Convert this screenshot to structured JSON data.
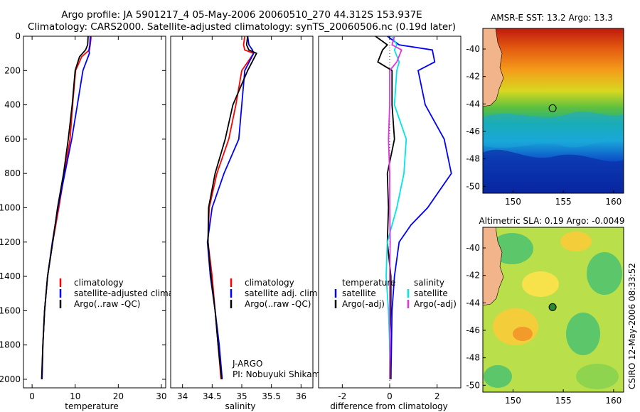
{
  "title_line1": "Argo profile: JA 5901217_4 05-May-2006 20060510_270 44.312S 153.937E",
  "title_line2": "Climatology: CARS2000. Satellite-adjusted climatology: synTS_20060506.nc (0.19d later)",
  "side_stamp": "CSIRO 12-May-2006 08:33:52",
  "colors": {
    "climatology": "#ff0000",
    "satellite": "#0000ff",
    "argo": "#000000",
    "cyan": "#00e5e5",
    "magenta": "#e033e0",
    "coast": "#f2b48a"
  },
  "chart_data": [
    {
      "type": "line",
      "id": "temperature",
      "xlabel": "temperature",
      "ylabel": "",
      "xlim": [
        -2,
        31
      ],
      "ylim": [
        2050,
        0
      ],
      "xticks": [
        0,
        10,
        20,
        30
      ],
      "yticks": [
        0,
        200,
        400,
        600,
        800,
        1000,
        1200,
        1400,
        1600,
        1800,
        2000
      ],
      "legend": [
        "climatology",
        "satellite-adjusted climatology",
        "Argo(..raw -QC)"
      ],
      "legend_location": "lower-right",
      "series": [
        {
          "name": "climatology",
          "color": "#ff0000",
          "x": [
            13.7,
            13.5,
            13.3,
            11.5,
            10.1,
            9.4,
            8.8,
            7.5,
            6.2,
            4.8,
            3.6,
            2.9,
            2.5,
            2.3
          ],
          "y": [
            0,
            50,
            80,
            120,
            200,
            400,
            600,
            800,
            1000,
            1200,
            1400,
            1600,
            1800,
            2000
          ]
        },
        {
          "name": "satellite-adjusted climatology",
          "color": "#0000ff",
          "x": [
            13.5,
            13.4,
            13.2,
            13.3,
            11.8,
            10.5,
            9.2,
            7.6,
            6.0,
            4.7,
            3.6,
            2.9,
            2.5,
            2.3
          ],
          "y": [
            0,
            50,
            80,
            100,
            200,
            400,
            600,
            800,
            1000,
            1200,
            1400,
            1600,
            1800,
            2000
          ]
        },
        {
          "name": "Argo(..raw -QC)",
          "color": "#000000",
          "x": [
            13.0,
            12.9,
            12.4,
            11.0,
            10.0,
            9.3,
            8.4,
            7.3,
            5.9,
            4.8,
            3.6,
            2.9,
            2.5,
            2.2
          ],
          "y": [
            0,
            50,
            80,
            120,
            200,
            400,
            600,
            800,
            1000,
            1200,
            1400,
            1600,
            1800,
            2000
          ]
        }
      ]
    },
    {
      "type": "line",
      "id": "salinity",
      "xlabel": "salinity",
      "ylabel": "",
      "xlim": [
        33.8,
        36.2
      ],
      "ylim": [
        2050,
        0
      ],
      "xticks": [
        34,
        34.5,
        35,
        35.5,
        36
      ],
      "xticklabels": [
        "34",
        "34.5",
        "35",
        "35.5",
        "36"
      ],
      "legend": [
        "climatology",
        "satellite adj. clim.",
        "Argo(..raw -QC)"
      ],
      "legend_location": "lower-right",
      "annotations": [
        "J-ARGO",
        "PI: Nobuyuki Shikama"
      ],
      "series": [
        {
          "name": "climatology",
          "color": "#ff0000",
          "x": [
            35.05,
            35.03,
            35.05,
            35.2,
            35.0,
            34.9,
            34.78,
            34.58,
            34.45,
            34.43,
            34.5,
            34.55,
            34.6,
            34.65
          ],
          "y": [
            0,
            50,
            80,
            100,
            200,
            400,
            600,
            800,
            1000,
            1200,
            1400,
            1600,
            1800,
            2000
          ]
        },
        {
          "name": "satellite adj. clim.",
          "color": "#0000ff",
          "x": [
            35.1,
            35.12,
            35.18,
            35.2,
            35.05,
            35.0,
            34.95,
            34.7,
            34.5,
            34.42,
            34.47,
            34.55,
            34.62,
            34.67
          ],
          "y": [
            0,
            50,
            80,
            100,
            200,
            400,
            600,
            800,
            1000,
            1200,
            1400,
            1600,
            1800,
            2000
          ]
        },
        {
          "name": "Argo(..raw -QC)",
          "color": "#000000",
          "x": [
            35.1,
            35.08,
            35.12,
            35.25,
            35.1,
            34.85,
            34.72,
            34.55,
            34.44,
            34.43,
            34.48,
            34.55,
            34.6,
            34.66
          ],
          "y": [
            0,
            50,
            80,
            100,
            200,
            400,
            600,
            800,
            1000,
            1200,
            1400,
            1600,
            1800,
            2000
          ]
        }
      ]
    },
    {
      "type": "line",
      "id": "difference",
      "xlabel": "difference from climatology",
      "ylabel": "",
      "xlim": [
        -3,
        3
      ],
      "ylim": [
        2050,
        0
      ],
      "xticks": [
        -2,
        0,
        2
      ],
      "legend_headers": [
        "temperature",
        "salinity"
      ],
      "legend_left": [
        "satellite",
        "Argo(-adj)"
      ],
      "legend_right": [
        "satellite",
        "Argo(-adj)"
      ],
      "series": [
        {
          "name": "temperature satellite",
          "color": "#0000ff",
          "x": [
            -0.1,
            0.4,
            1.8,
            1.9,
            1.2,
            1.5,
            2.3,
            2.6,
            1.6,
            0.9,
            0.4,
            0.2,
            0.1,
            0.05
          ],
          "y": [
            0,
            50,
            80,
            150,
            200,
            400,
            600,
            800,
            1000,
            1100,
            1200,
            1400,
            1600,
            2000
          ]
        },
        {
          "name": "temperature Argo(-adj)",
          "color": "#000000",
          "x": [
            -0.6,
            -0.1,
            -0.3,
            -0.5,
            0.1,
            0.1,
            0.2,
            -0.1,
            -0.05,
            -0.1,
            0.05,
            0.05,
            0.0,
            0.05
          ],
          "y": [
            0,
            50,
            80,
            150,
            200,
            400,
            600,
            800,
            1000,
            1200,
            1400,
            1600,
            1800,
            2000
          ]
        },
        {
          "name": "salinity satellite",
          "color": "#00e5e5",
          "x": [
            0.1,
            0.3,
            0.2,
            0.4,
            0.3,
            0.2,
            0.7,
            0.6,
            0.3,
            -0.1,
            -0.15,
            -0.05,
            0.0,
            0.0
          ],
          "y": [
            0,
            50,
            80,
            150,
            200,
            400,
            600,
            800,
            1000,
            1200,
            1400,
            1600,
            1800,
            2000
          ]
        },
        {
          "name": "salinity Argo(-adj)",
          "color": "#e033e0",
          "x": [
            0.2,
            0.1,
            0.5,
            0.3,
            0.0,
            0.0,
            -0.05,
            0.0,
            0.0,
            0.02,
            0.0,
            0.0,
            0.02,
            0.0
          ],
          "y": [
            0,
            50,
            80,
            150,
            200,
            400,
            600,
            800,
            1000,
            1200,
            1400,
            1600,
            1800,
            2000
          ]
        }
      ]
    },
    {
      "type": "heatmap",
      "id": "sst_map",
      "title": "AMSR-E SST: 13.2 Argo: 13.3",
      "xlim": [
        147,
        161
      ],
      "ylim": [
        -50.5,
        -38.5
      ],
      "xticks": [
        150,
        155,
        160
      ],
      "yticks": [
        -40,
        -42,
        -44,
        -46,
        -48,
        -50
      ],
      "marker": {
        "lon": 153.937,
        "lat": -44.312
      }
    },
    {
      "type": "heatmap",
      "id": "sla_map",
      "title": "Altimetric SLA: 0.19 Argo: -0.0049",
      "xlim": [
        147,
        161
      ],
      "ylim": [
        -50.5,
        -38.5
      ],
      "xticks": [
        150,
        155,
        160
      ],
      "yticks": [
        -40,
        -42,
        -44,
        -46,
        -48,
        -50
      ],
      "marker": {
        "lon": 153.937,
        "lat": -44.312
      }
    }
  ]
}
